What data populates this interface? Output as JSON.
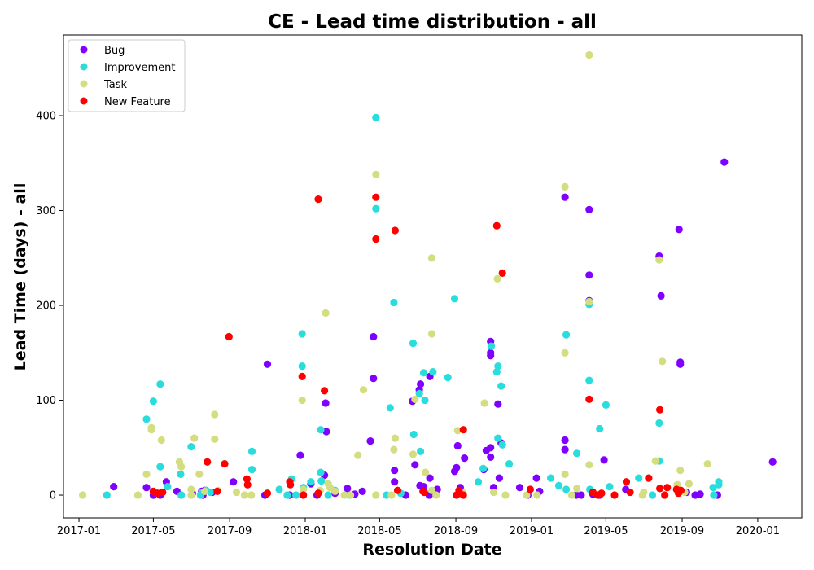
{
  "chart_data": {
    "type": "scatter",
    "title": "CE - Lead time distribution - all",
    "xlabel": "Resolution Date",
    "ylabel": "Lead Time (days) - all",
    "xlim": [
      "2016-12-07",
      "2020-03-12"
    ],
    "ylim": [
      -24,
      485
    ],
    "x_ticks": [
      "2017-01",
      "2017-05",
      "2017-09",
      "2018-01",
      "2018-05",
      "2018-09",
      "2019-01",
      "2019-05",
      "2019-09",
      "2020-01"
    ],
    "y_ticks": [
      0,
      100,
      200,
      300,
      400
    ],
    "grid": false,
    "legend_position": "upper-left",
    "series": [
      {
        "name": "Bug",
        "color": "#8000ff",
        "points": [
          [
            "2017-02-26",
            9
          ],
          [
            "2017-04-20",
            8
          ],
          [
            "2017-05-01",
            0
          ],
          [
            "2017-05-12",
            0
          ],
          [
            "2017-05-22",
            14
          ],
          [
            "2017-06-08",
            4
          ],
          [
            "2017-07-03",
            2
          ],
          [
            "2017-07-18",
            4
          ],
          [
            "2017-07-23",
            5
          ],
          [
            "2017-08-04",
            3
          ],
          [
            "2017-09-07",
            14
          ],
          [
            "2017-11-01",
            138
          ],
          [
            "2017-10-28",
            0
          ],
          [
            "2017-12-07",
            0
          ],
          [
            "2017-12-24",
            42
          ],
          [
            "2018-01-10",
            12
          ],
          [
            "2018-01-20",
            0
          ],
          [
            "2018-02-03",
            97
          ],
          [
            "2018-02-04",
            67
          ],
          [
            "2018-02-01",
            21
          ],
          [
            "2018-02-18",
            2
          ],
          [
            "2018-03-10",
            7
          ],
          [
            "2018-04-03",
            4
          ],
          [
            "2018-04-16",
            57
          ],
          [
            "2018-04-21",
            167
          ],
          [
            "2018-04-21",
            123
          ],
          [
            "2018-05-25",
            26
          ],
          [
            "2018-05-25",
            14
          ],
          [
            "2018-06-23",
            99
          ],
          [
            "2018-06-27",
            32
          ],
          [
            "2018-07-04",
            111
          ],
          [
            "2018-07-06",
            117
          ],
          [
            "2018-07-05",
            10
          ],
          [
            "2018-07-11",
            9
          ],
          [
            "2018-07-20",
            0
          ],
          [
            "2018-07-21",
            125
          ],
          [
            "2018-07-21",
            18
          ],
          [
            "2018-08-02",
            6
          ],
          [
            "2018-08-30",
            25
          ],
          [
            "2018-09-02",
            29
          ],
          [
            "2018-09-04",
            52
          ],
          [
            "2018-09-15",
            39
          ],
          [
            "2018-09-08",
            8
          ],
          [
            "2018-10-16",
            27
          ],
          [
            "2018-10-20",
            47
          ],
          [
            "2018-10-27",
            162
          ],
          [
            "2018-10-27",
            150
          ],
          [
            "2018-10-27",
            147
          ],
          [
            "2018-10-27",
            50
          ],
          [
            "2018-10-27",
            40
          ],
          [
            "2018-11-08",
            96
          ],
          [
            "2018-11-10",
            18
          ],
          [
            "2018-11-13",
            55
          ],
          [
            "2018-11-01",
            8
          ],
          [
            "2018-12-13",
            8
          ],
          [
            "2018-12-26",
            0
          ],
          [
            "2019-01-09",
            18
          ],
          [
            "2019-01-14",
            4
          ],
          [
            "2019-02-24",
            314
          ],
          [
            "2019-02-24",
            58
          ],
          [
            "2019-02-24",
            48
          ],
          [
            "2019-03-14",
            0
          ],
          [
            "2019-03-22",
            0
          ],
          [
            "2019-04-04",
            301
          ],
          [
            "2019-04-04",
            232
          ],
          [
            "2019-04-04",
            205
          ],
          [
            "2019-04-10",
            1
          ],
          [
            "2019-04-28",
            37
          ],
          [
            "2019-04-21",
            0
          ],
          [
            "2019-06-02",
            6
          ],
          [
            "2019-07-26",
            252
          ],
          [
            "2019-07-29",
            210
          ],
          [
            "2019-08-27",
            280
          ],
          [
            "2019-08-29",
            140
          ],
          [
            "2019-08-29",
            138
          ],
          [
            "2019-09-08",
            3
          ],
          [
            "2019-09-22",
            0
          ],
          [
            "2019-10-28",
            0
          ],
          [
            "2019-11-08",
            351
          ],
          [
            "2020-01-25",
            35
          ],
          [
            "2017-07-20",
            0
          ],
          [
            "2018-03-22",
            1
          ],
          [
            "2018-06-12",
            0
          ],
          [
            "2019-09-30",
            1
          ]
        ]
      },
      {
        "name": "Improvement",
        "color": "#2adddd",
        "points": [
          [
            "2017-02-15",
            0
          ],
          [
            "2017-04-20",
            80
          ],
          [
            "2017-05-01",
            99
          ],
          [
            "2017-05-12",
            117
          ],
          [
            "2017-05-12",
            30
          ],
          [
            "2017-05-24",
            9
          ],
          [
            "2017-06-14",
            22
          ],
          [
            "2017-06-15",
            0
          ],
          [
            "2017-07-01",
            51
          ],
          [
            "2017-07-16",
            0
          ],
          [
            "2017-07-19",
            3
          ],
          [
            "2017-07-25",
            5
          ],
          [
            "2017-08-01",
            3
          ],
          [
            "2017-10-07",
            46
          ],
          [
            "2017-10-07",
            27
          ],
          [
            "2017-11-20",
            6
          ],
          [
            "2017-12-03",
            0
          ],
          [
            "2017-12-10",
            17
          ],
          [
            "2017-12-17",
            0
          ],
          [
            "2017-12-27",
            170
          ],
          [
            "2017-12-27",
            136
          ],
          [
            "2017-12-29",
            8
          ],
          [
            "2018-01-10",
            14
          ],
          [
            "2018-01-26",
            69
          ],
          [
            "2018-01-26",
            24
          ],
          [
            "2018-01-27",
            15
          ],
          [
            "2018-02-07",
            0
          ],
          [
            "2018-02-18",
            5
          ],
          [
            "2018-03-14",
            0
          ],
          [
            "2018-04-25",
            398
          ],
          [
            "2018-04-25",
            302
          ],
          [
            "2018-05-18",
            92
          ],
          [
            "2018-05-24",
            203
          ],
          [
            "2018-05-12",
            0
          ],
          [
            "2018-06-04",
            2
          ],
          [
            "2018-06-24",
            160
          ],
          [
            "2018-06-25",
            64
          ],
          [
            "2018-07-04",
            107
          ],
          [
            "2018-07-06",
            46
          ],
          [
            "2018-07-11",
            129
          ],
          [
            "2018-07-13",
            100
          ],
          [
            "2018-07-26",
            130
          ],
          [
            "2018-08-19",
            124
          ],
          [
            "2018-08-30",
            207
          ],
          [
            "2018-10-15",
            28
          ],
          [
            "2018-10-07",
            14
          ],
          [
            "2018-10-28",
            157
          ],
          [
            "2018-11-06",
            130
          ],
          [
            "2018-11-08",
            136
          ],
          [
            "2018-11-08",
            60
          ],
          [
            "2018-11-13",
            115
          ],
          [
            "2018-11-15",
            53
          ],
          [
            "2018-11-26",
            33
          ],
          [
            "2019-02-01",
            18
          ],
          [
            "2019-02-14",
            10
          ],
          [
            "2019-02-26",
            169
          ],
          [
            "2019-02-26",
            6
          ],
          [
            "2019-03-15",
            44
          ],
          [
            "2019-04-04",
            201
          ],
          [
            "2019-04-04",
            121
          ],
          [
            "2019-04-21",
            70
          ],
          [
            "2019-04-05",
            6
          ],
          [
            "2019-05-01",
            95
          ],
          [
            "2019-05-07",
            9
          ],
          [
            "2019-06-23",
            18
          ],
          [
            "2019-07-15",
            0
          ],
          [
            "2019-07-26",
            76
          ],
          [
            "2019-07-26",
            36
          ],
          [
            "2019-10-21",
            8
          ],
          [
            "2019-10-30",
            14
          ],
          [
            "2019-10-30",
            11
          ],
          [
            "2019-10-22",
            0
          ]
        ]
      },
      {
        "name": "Task",
        "color": "#d4dd80",
        "points": [
          [
            "2017-01-07",
            0
          ],
          [
            "2017-04-06",
            0
          ],
          [
            "2017-04-20",
            22
          ],
          [
            "2017-04-28",
            71
          ],
          [
            "2017-04-28",
            69
          ],
          [
            "2017-05-14",
            58
          ],
          [
            "2017-06-12",
            35
          ],
          [
            "2017-06-15",
            30
          ],
          [
            "2017-07-01",
            6
          ],
          [
            "2017-07-01",
            0
          ],
          [
            "2017-07-06",
            60
          ],
          [
            "2017-07-14",
            22
          ],
          [
            "2017-07-23",
            4
          ],
          [
            "2017-08-08",
            85
          ],
          [
            "2017-08-08",
            59
          ],
          [
            "2017-08-13",
            5
          ],
          [
            "2017-09-12",
            3
          ],
          [
            "2017-09-25",
            0
          ],
          [
            "2017-10-06",
            0
          ],
          [
            "2017-12-27",
            100
          ],
          [
            "2017-12-29",
            6
          ],
          [
            "2018-01-25",
            5
          ],
          [
            "2018-02-03",
            192
          ],
          [
            "2018-02-07",
            12
          ],
          [
            "2018-02-10",
            8
          ],
          [
            "2018-02-18",
            4
          ],
          [
            "2018-03-05",
            0
          ],
          [
            "2018-03-27",
            42
          ],
          [
            "2018-04-05",
            111
          ],
          [
            "2018-04-25",
            338
          ],
          [
            "2018-04-25",
            0
          ],
          [
            "2018-05-20",
            0
          ],
          [
            "2018-05-24",
            48
          ],
          [
            "2018-05-26",
            60
          ],
          [
            "2018-06-24",
            43
          ],
          [
            "2018-06-27",
            101
          ],
          [
            "2018-07-14",
            24
          ],
          [
            "2018-07-24",
            250
          ],
          [
            "2018-07-24",
            170
          ],
          [
            "2018-07-24",
            5
          ],
          [
            "2018-07-31",
            0
          ],
          [
            "2018-09-04",
            68
          ],
          [
            "2018-09-11",
            3
          ],
          [
            "2018-10-17",
            97
          ],
          [
            "2018-11-01",
            3
          ],
          [
            "2018-11-07",
            228
          ],
          [
            "2018-11-20",
            0
          ],
          [
            "2018-12-24",
            0
          ],
          [
            "2019-01-10",
            0
          ],
          [
            "2019-02-24",
            325
          ],
          [
            "2019-02-24",
            150
          ],
          [
            "2019-02-24",
            22
          ],
          [
            "2019-03-07",
            0
          ],
          [
            "2019-03-15",
            7
          ],
          [
            "2019-04-04",
            32
          ],
          [
            "2019-04-04",
            204
          ],
          [
            "2019-04-04",
            464
          ],
          [
            "2019-07-01",
            3
          ],
          [
            "2019-07-20",
            36
          ],
          [
            "2019-07-26",
            248
          ],
          [
            "2019-07-31",
            141
          ],
          [
            "2019-08-24",
            11
          ],
          [
            "2019-08-29",
            26
          ],
          [
            "2019-09-12",
            12
          ],
          [
            "2019-10-12",
            33
          ],
          [
            "2018-03-15",
            0
          ],
          [
            "2019-06-29",
            0
          ],
          [
            "2019-09-05",
            3
          ]
        ]
      },
      {
        "name": "New Feature",
        "color": "#ff0000",
        "points": [
          [
            "2017-05-01",
            4
          ],
          [
            "2017-05-08",
            2
          ],
          [
            "2017-05-16",
            3
          ],
          [
            "2017-07-27",
            35
          ],
          [
            "2017-08-12",
            4
          ],
          [
            "2017-08-24",
            33
          ],
          [
            "2017-08-31",
            167
          ],
          [
            "2017-09-29",
            17
          ],
          [
            "2017-09-30",
            11
          ],
          [
            "2017-11-01",
            2
          ],
          [
            "2017-12-07",
            14
          ],
          [
            "2017-12-08",
            11
          ],
          [
            "2017-12-27",
            125
          ],
          [
            "2017-12-29",
            0
          ],
          [
            "2018-01-22",
            312
          ],
          [
            "2018-01-22",
            2
          ],
          [
            "2018-02-01",
            110
          ],
          [
            "2018-04-25",
            314
          ],
          [
            "2018-04-25",
            270
          ],
          [
            "2018-05-26",
            279
          ],
          [
            "2018-05-30",
            5
          ],
          [
            "2018-07-10",
            4
          ],
          [
            "2018-07-12",
            3
          ],
          [
            "2018-09-02",
            0
          ],
          [
            "2018-09-06",
            5
          ],
          [
            "2018-09-13",
            0
          ],
          [
            "2018-09-13",
            69
          ],
          [
            "2018-11-06",
            284
          ],
          [
            "2018-11-15",
            234
          ],
          [
            "2018-12-30",
            6
          ],
          [
            "2019-04-04",
            101
          ],
          [
            "2019-04-10",
            3
          ],
          [
            "2019-04-18",
            0
          ],
          [
            "2019-04-24",
            2
          ],
          [
            "2019-05-15",
            0
          ],
          [
            "2019-06-03",
            14
          ],
          [
            "2019-06-09",
            3
          ],
          [
            "2019-07-09",
            18
          ],
          [
            "2019-07-27",
            90
          ],
          [
            "2019-07-27",
            7
          ],
          [
            "2019-08-04",
            0
          ],
          [
            "2019-08-08",
            8
          ],
          [
            "2019-08-23",
            6
          ],
          [
            "2019-08-26",
            2
          ],
          [
            "2019-08-30",
            5
          ]
        ]
      }
    ]
  }
}
